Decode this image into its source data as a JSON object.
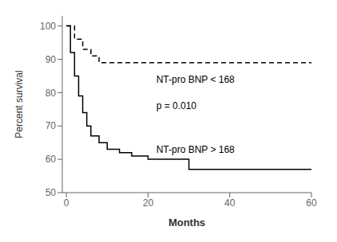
{
  "chart_data": {
    "type": "line",
    "title": "",
    "xlabel": "Months",
    "ylabel": "Percent survival",
    "xlim": [
      -1,
      60
    ],
    "ylim": [
      50,
      103
    ],
    "xticks": [
      0,
      20,
      40,
      60
    ],
    "yticks": [
      50,
      60,
      70,
      80,
      90,
      100
    ],
    "grid": false,
    "series": [
      {
        "x": [
          0,
          2,
          4,
          6,
          8,
          60
        ],
        "values": [
          100,
          96,
          93,
          91,
          89,
          89
        ],
        "color": "#000000",
        "line_style": "dashed"
      },
      {
        "x": [
          0,
          1,
          2,
          3,
          4,
          5,
          6,
          8,
          10,
          13,
          16,
          20,
          25,
          30,
          60
        ],
        "values": [
          100,
          92,
          85,
          79,
          74,
          70,
          67,
          65,
          63,
          62,
          61,
          60,
          60,
          57,
          57
        ],
        "color": "#000000",
        "line_style": "solid"
      }
    ],
    "annotations": [
      {
        "text": "NT-pro BNP < 168",
        "x": 22,
        "y": 84
      },
      {
        "text": "p = 0.010",
        "x": 22,
        "y": 76
      },
      {
        "text": "NT-pro BNP > 168",
        "x": 22,
        "y": 63
      }
    ]
  }
}
